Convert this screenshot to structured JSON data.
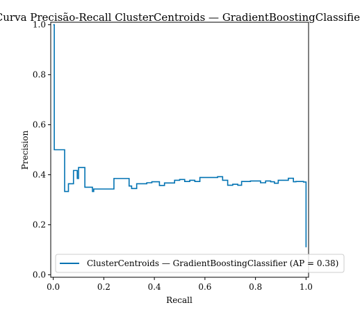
{
  "chart_data": {
    "type": "line",
    "title": "Curva Precisão-Recall ClusterCentroids — GradientBoostingClassifier",
    "xlabel": "Recall",
    "ylabel": "Precision",
    "xlim": [
      -0.01,
      1.01
    ],
    "ylim": [
      -0.01,
      1.01
    ],
    "xticks": [
      "0.0",
      "0.2",
      "0.4",
      "0.6",
      "0.8",
      "1.0"
    ],
    "yticks": [
      "0.0",
      "0.2",
      "0.4",
      "0.6",
      "0.8",
      "1.0"
    ],
    "grid": false,
    "legend_position": "lower-right",
    "series": [
      {
        "name": "ClusterCentroids — GradientBoostingClassifier (AP = 0.38)",
        "color": "#0072B2",
        "drawstyle": "steps-post",
        "points": [
          [
            0.0,
            1.0
          ],
          [
            0.004,
            0.5
          ],
          [
            0.045,
            0.333
          ],
          [
            0.06,
            0.364
          ],
          [
            0.08,
            0.417
          ],
          [
            0.095,
            0.385
          ],
          [
            0.1,
            0.429
          ],
          [
            0.125,
            0.35
          ],
          [
            0.155,
            0.333
          ],
          [
            0.16,
            0.343
          ],
          [
            0.24,
            0.385
          ],
          [
            0.3,
            0.355
          ],
          [
            0.31,
            0.345
          ],
          [
            0.33,
            0.364
          ],
          [
            0.37,
            0.368
          ],
          [
            0.39,
            0.372
          ],
          [
            0.42,
            0.357
          ],
          [
            0.44,
            0.367
          ],
          [
            0.48,
            0.378
          ],
          [
            0.5,
            0.381
          ],
          [
            0.52,
            0.373
          ],
          [
            0.54,
            0.378
          ],
          [
            0.56,
            0.373
          ],
          [
            0.58,
            0.389
          ],
          [
            0.65,
            0.392
          ],
          [
            0.67,
            0.378
          ],
          [
            0.69,
            0.358
          ],
          [
            0.71,
            0.362
          ],
          [
            0.73,
            0.358
          ],
          [
            0.745,
            0.373
          ],
          [
            0.78,
            0.375
          ],
          [
            0.82,
            0.368
          ],
          [
            0.84,
            0.375
          ],
          [
            0.86,
            0.372
          ],
          [
            0.875,
            0.366
          ],
          [
            0.89,
            0.378
          ],
          [
            0.93,
            0.386
          ],
          [
            0.95,
            0.372
          ],
          [
            0.96,
            0.373
          ],
          [
            0.99,
            0.371
          ],
          [
            1.0,
            0.11
          ]
        ]
      }
    ]
  }
}
